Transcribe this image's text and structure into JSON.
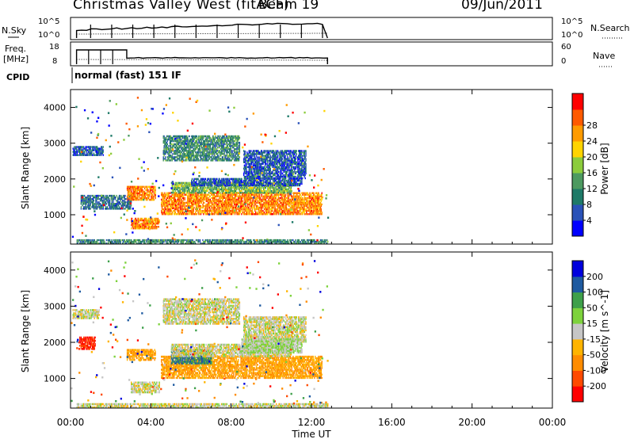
{
  "header": {
    "station": "Christmas Valley West (fitACF)",
    "beam": "Beam 19",
    "date": "09/Jun/2011"
  },
  "params": {
    "nsky_label": "N.Sky",
    "nsky_ticks": [
      "10^5",
      "10^0"
    ],
    "freq_label": "Freq.",
    "freq_unit": "[MHz]",
    "freq_ticks": [
      "18",
      "8"
    ],
    "nsearch_label": "N.Search",
    "nsearch_ticks": [
      "10^5",
      "10^0"
    ],
    "nave_label": "Nave",
    "nave_ticks": [
      "60",
      "0"
    ],
    "cpid_label": "CPID",
    "cpid_text": "normal (fast) 151 IF"
  },
  "colors": {
    "power": [
      "#0000ff",
      "#2a52b8",
      "#1e7a68",
      "#4d9a60",
      "#8ccc3c",
      "#ffd400",
      "#ff9b00",
      "#ff5a00",
      "#ff0000"
    ],
    "velocity": [
      "#ff0000",
      "#ff4a00",
      "#ff8c00",
      "#ffb400",
      "#c6c6c6",
      "#7dd23c",
      "#3ea04a",
      "#1e5aa0",
      "#0000dd"
    ]
  },
  "chart_data": [
    {
      "type": "heatmap",
      "quantity": "power",
      "xlabel": "",
      "ylabel": "Slant Range [km]",
      "xlim": [
        "00:00",
        "24:00"
      ],
      "ylim": [
        180,
        4500
      ],
      "x_ticks": [
        "00:00",
        "04:00",
        "08:00",
        "12:00",
        "16:00",
        "20:00",
        "00:00"
      ],
      "y_ticks": [
        1000,
        2000,
        3000,
        4000
      ],
      "colorbar": {
        "label": "Power [dB]",
        "ticks": [
          4,
          8,
          12,
          16,
          20,
          24,
          28
        ]
      },
      "data_end_ut": 12.8,
      "echo_regions": [
        {
          "from": 0.3,
          "to": 12.8,
          "range": [
            180,
            300
          ],
          "dB": 10
        },
        {
          "from": 0.1,
          "to": 1.6,
          "range": [
            2650,
            2900
          ],
          "dB": 6
        },
        {
          "from": 0.5,
          "to": 3.0,
          "range": [
            1150,
            1550
          ],
          "dB": 8
        },
        {
          "from": 2.8,
          "to": 4.2,
          "range": [
            1400,
            1800
          ],
          "dB": 24
        },
        {
          "from": 3.0,
          "to": 4.4,
          "range": [
            600,
            900
          ],
          "dB": 24
        },
        {
          "from": 4.5,
          "to": 12.5,
          "range": [
            1000,
            1600
          ],
          "dB": 24
        },
        {
          "from": 5.0,
          "to": 11.0,
          "range": [
            1600,
            1900
          ],
          "dB": 14
        },
        {
          "from": 6.0,
          "to": 11.5,
          "range": [
            1800,
            2000
          ],
          "dB": 6
        },
        {
          "from": 8.6,
          "to": 11.7,
          "range": [
            2000,
            2800
          ],
          "dB": 6
        },
        {
          "from": 4.6,
          "to": 8.4,
          "range": [
            2500,
            3200
          ],
          "dB": 10
        }
      ]
    },
    {
      "type": "heatmap",
      "quantity": "velocity",
      "xlabel": "Time UT",
      "ylabel": "Slant Range [km]",
      "xlim": [
        "00:00",
        "24:00"
      ],
      "ylim": [
        180,
        4500
      ],
      "x_ticks": [
        "00:00",
        "04:00",
        "08:00",
        "12:00",
        "16:00",
        "20:00",
        "00:00"
      ],
      "y_ticks": [
        1000,
        2000,
        3000,
        4000
      ],
      "colorbar": {
        "label": "Velocity [m s^-1]",
        "ticks": [
          200,
          100,
          50,
          15,
          -15,
          -50,
          -100,
          -200
        ]
      },
      "data_end_ut": 12.8,
      "echo_regions": [
        {
          "from": 0.3,
          "to": 12.8,
          "range": [
            180,
            300
          ],
          "v": 0
        },
        {
          "from": 0.1,
          "to": 1.4,
          "range": [
            2650,
            2900
          ],
          "v": 0
        },
        {
          "from": 0.4,
          "to": 1.2,
          "range": [
            1800,
            2150
          ],
          "v": -200
        },
        {
          "from": 2.8,
          "to": 4.2,
          "range": [
            1500,
            1800
          ],
          "v": -50
        },
        {
          "from": 3.0,
          "to": 4.4,
          "range": [
            600,
            900
          ],
          "v": 0
        },
        {
          "from": 4.5,
          "to": 12.5,
          "range": [
            1000,
            1600
          ],
          "v": -50
        },
        {
          "from": 5.0,
          "to": 7.0,
          "range": [
            1400,
            1800
          ],
          "v": 100
        },
        {
          "from": 5.0,
          "to": 11.0,
          "range": [
            1600,
            1950
          ],
          "v": 0
        },
        {
          "from": 8.6,
          "to": 11.7,
          "range": [
            2000,
            2700
          ],
          "v": 0
        },
        {
          "from": 4.6,
          "to": 8.4,
          "range": [
            2500,
            3200
          ],
          "v": 0
        },
        {
          "from": 8.5,
          "to": 11.5,
          "range": [
            1700,
            2100
          ],
          "v": 15
        }
      ]
    }
  ]
}
